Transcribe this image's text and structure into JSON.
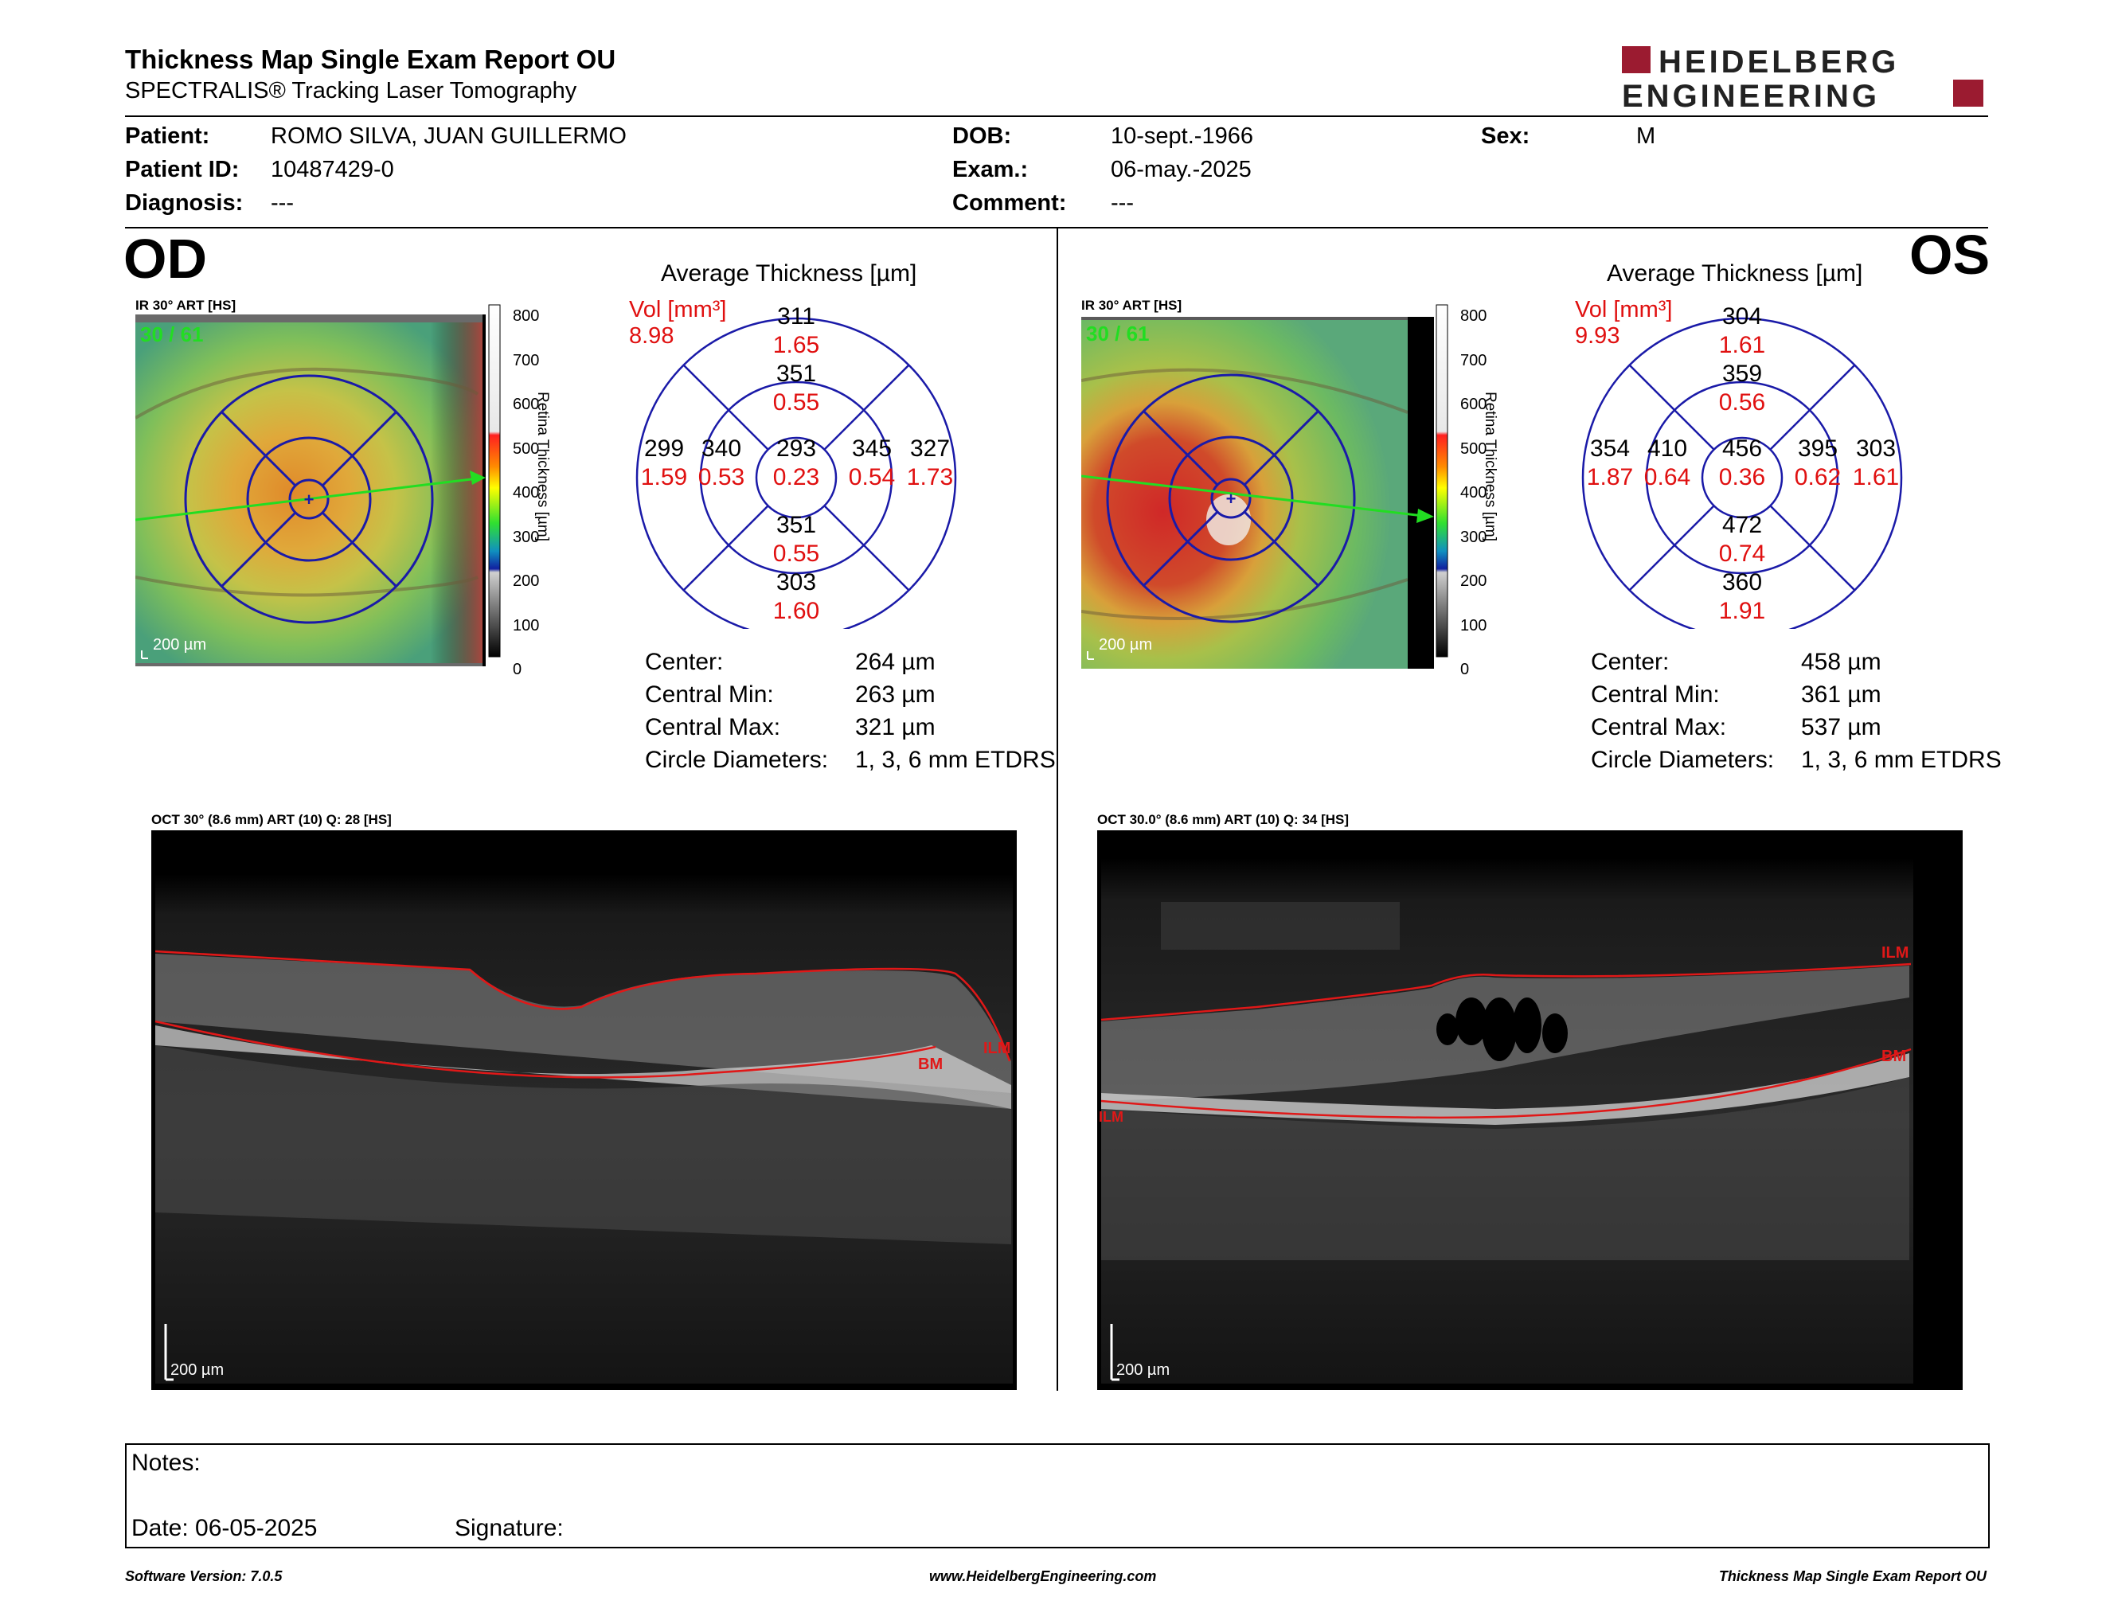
{
  "header": {
    "title": "Thickness Map Single Exam Report OU",
    "subtitle": "SPECTRALIS® Tracking Laser Tomography",
    "logo_line1": "HEIDELBERG",
    "logo_line2": "ENGINEERING"
  },
  "patient": {
    "patient_label": "Patient:",
    "patient_value": "ROMO SILVA, JUAN GUILLERMO",
    "id_label": "Patient ID:",
    "id_value": "10487429-0",
    "diagnosis_label": "Diagnosis:",
    "diagnosis_value": "---",
    "dob_label": "DOB:",
    "dob_value": "10-sept.-1966",
    "exam_label": "Exam.:",
    "exam_value": "06-may.-2025",
    "comment_label": "Comment:",
    "comment_value": "---",
    "sex_label": "Sex:",
    "sex_value": "M"
  },
  "od": {
    "eye": "OD",
    "ir_label": "IR 30° ART [HS]",
    "frames": "30 / 61",
    "scale": "200 µm",
    "colorbar_title": "Retina Thickness [µm]",
    "colorbar_ticks": [
      "800",
      "700",
      "600",
      "500",
      "400",
      "300",
      "200",
      "100",
      "0"
    ],
    "avg_title": "Average Thickness [µm]",
    "vol_label": "Vol [mm³]",
    "vol_total": "8.98",
    "sectors": {
      "outer_sup": {
        "t": "311",
        "v": "1.65"
      },
      "inner_sup": {
        "t": "351",
        "v": "0.55"
      },
      "outer_left": {
        "t": "299",
        "v": "1.59"
      },
      "inner_left": {
        "t": "340",
        "v": "0.53"
      },
      "center": {
        "t": "293",
        "v": "0.23"
      },
      "inner_right": {
        "t": "345",
        "v": "0.54"
      },
      "outer_right": {
        "t": "327",
        "v": "1.73"
      },
      "inner_inf": {
        "t": "351",
        "v": "0.55"
      },
      "outer_inf": {
        "t": "303",
        "v": "1.60"
      }
    },
    "stats": [
      {
        "label": "Center:",
        "value": "264 µm"
      },
      {
        "label": "Central Min:",
        "value": "263 µm"
      },
      {
        "label": "Central Max:",
        "value": "321 µm"
      },
      {
        "label": "Circle Diameters:",
        "value": "1, 3, 6 mm ETDRS"
      }
    ],
    "oct_label": "OCT 30° (8.6 mm) ART (10) Q: 28 [HS]",
    "oct_scale": "200 µm",
    "ilm": "ILM",
    "bm": "BM"
  },
  "os": {
    "eye": "OS",
    "ir_label": "IR 30° ART [HS]",
    "frames": "30 / 61",
    "scale": "200 µm",
    "colorbar_title": "Retina Thickness [µm]",
    "colorbar_ticks": [
      "800",
      "700",
      "600",
      "500",
      "400",
      "300",
      "200",
      "100",
      "0"
    ],
    "avg_title": "Average Thickness [µm]",
    "vol_label": "Vol [mm³]",
    "vol_total": "9.93",
    "sectors": {
      "outer_sup": {
        "t": "304",
        "v": "1.61"
      },
      "inner_sup": {
        "t": "359",
        "v": "0.56"
      },
      "outer_left": {
        "t": "354",
        "v": "1.87"
      },
      "inner_left": {
        "t": "410",
        "v": "0.64"
      },
      "center": {
        "t": "456",
        "v": "0.36"
      },
      "inner_right": {
        "t": "395",
        "v": "0.62"
      },
      "outer_right": {
        "t": "303",
        "v": "1.61"
      },
      "inner_inf": {
        "t": "472",
        "v": "0.74"
      },
      "outer_inf": {
        "t": "360",
        "v": "1.91"
      }
    },
    "stats": [
      {
        "label": "Center:",
        "value": "458 µm"
      },
      {
        "label": "Central Min:",
        "value": "361 µm"
      },
      {
        "label": "Central Max:",
        "value": "537 µm"
      },
      {
        "label": "Circle Diameters:",
        "value": "1, 3, 6 mm ETDRS"
      }
    ],
    "oct_label": "OCT 30.0° (8.6 mm) ART (10) Q: 34 [HS]",
    "oct_scale": "200 µm",
    "ilm": "ILM",
    "bm": "BM",
    "ilm_left": "ILM"
  },
  "notes": {
    "notes_label": "Notes:",
    "date_label": "Date: 06-05-2025",
    "signature_label": "Signature:"
  },
  "footer": {
    "version": "Software Version: 7.0.5",
    "website": "www.HeidelbergEngineering.com",
    "report": "Thickness Map Single Exam Report OU"
  },
  "colors": {
    "accent_red": "#9b1b30",
    "sector_blue": "#1a1aa8",
    "volume_red": "#e01010",
    "frame_green": "#22dd22"
  }
}
